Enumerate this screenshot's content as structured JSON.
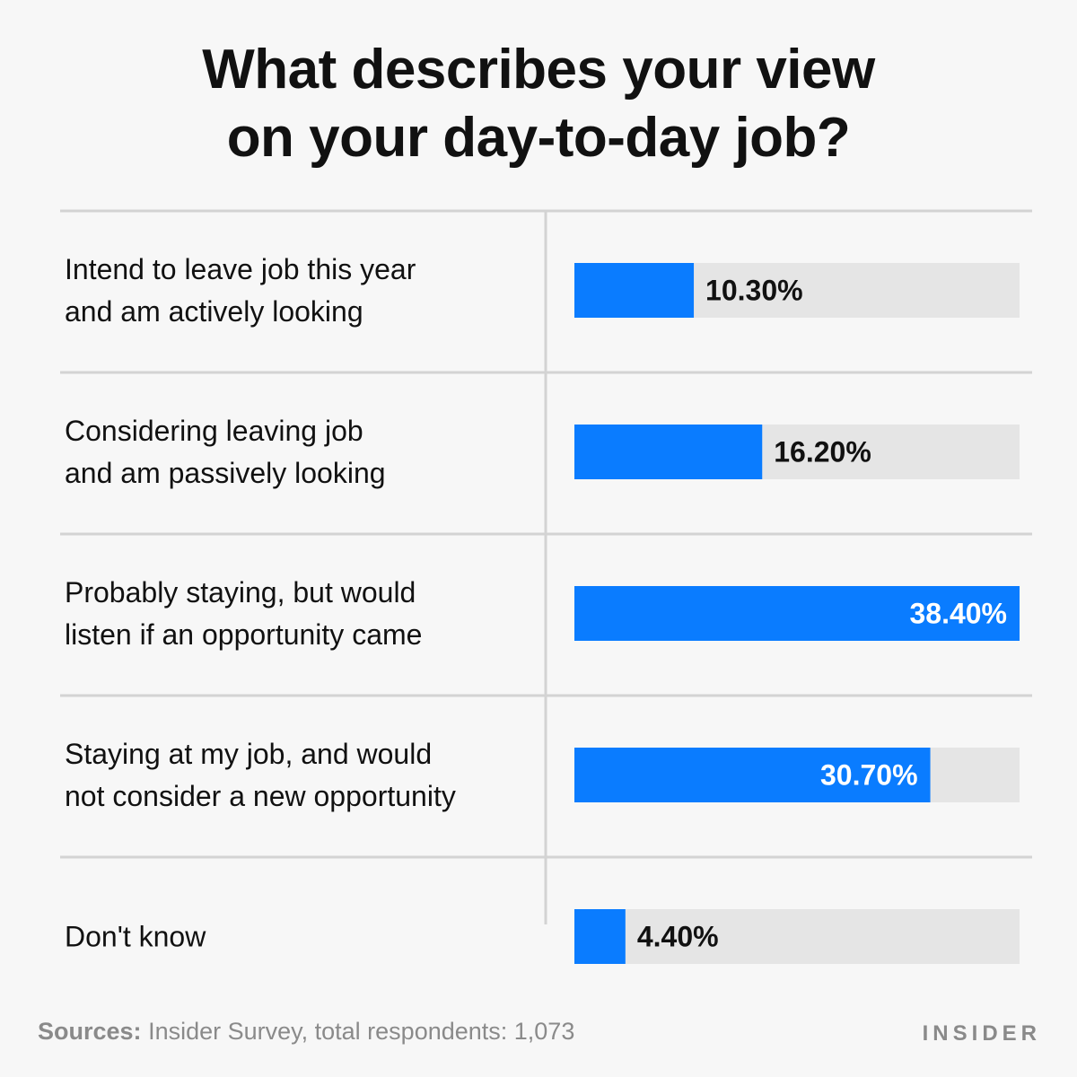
{
  "title_lines": [
    "What describes your view",
    "on your day-to-day job?"
  ],
  "footer": {
    "sources_label": "Sources:",
    "sources_text": "Insider Survey, total respondents: 1,073"
  },
  "logo": "INSIDER",
  "colors": {
    "bar": "#0a7cff",
    "track": "#e5e5e5",
    "divider": "#d3d3d3",
    "label_dark": "#111111",
    "label_light": "#ffffff"
  },
  "chart_data": {
    "type": "bar",
    "orientation": "horizontal",
    "title": "What describes your view on your day-to-day job?",
    "xlim": [
      0,
      38.4
    ],
    "categories": [
      [
        "Intend to leave job this year",
        "and am actively looking"
      ],
      [
        "Considering leaving job",
        "and am passively looking"
      ],
      [
        "Probably staying, but would",
        "listen if an opportunity came"
      ],
      [
        "Staying at my job, and would",
        "not consider a new opportunity"
      ],
      [
        "Don't know"
      ]
    ],
    "values": [
      10.3,
      16.2,
      38.4,
      30.7,
      4.4
    ],
    "value_labels": [
      "10.30%",
      "16.20%",
      "38.40%",
      "30.70%",
      "4.40%"
    ],
    "grid": false,
    "legend": "none"
  }
}
